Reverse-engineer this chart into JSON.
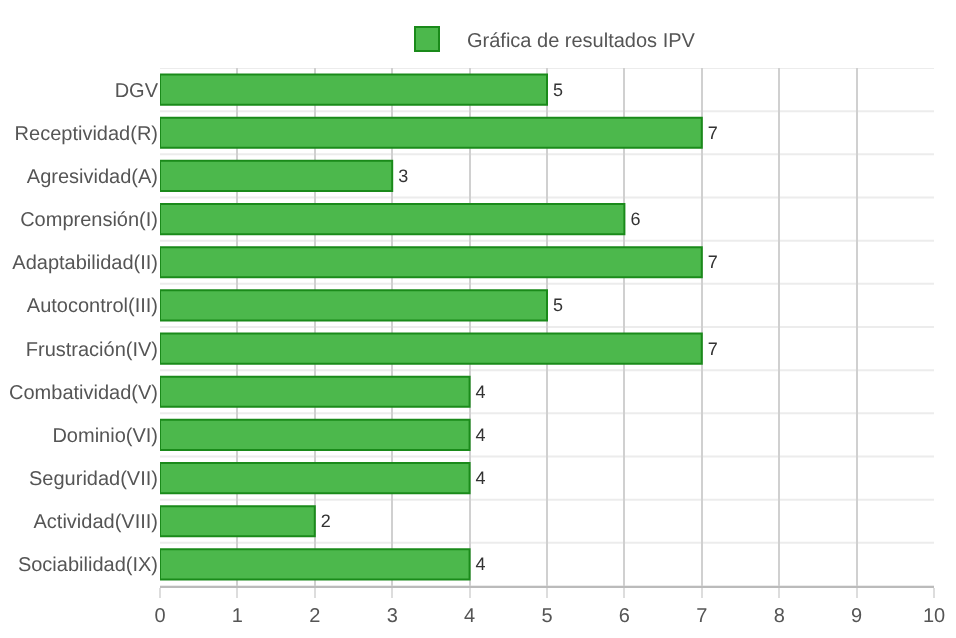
{
  "chart_data": {
    "type": "bar",
    "orientation": "horizontal",
    "categories": [
      "DGV",
      "Receptividad(R)",
      "Agresividad(A)",
      "Comprensión(I)",
      "Adaptabilidad(II)",
      "Autocontrol(III)",
      "Frustración(IV)",
      "Combatividad(V)",
      "Dominio(VI)",
      "Seguridad(VII)",
      "Actividad(VIII)",
      "Sociabilidad(IX)"
    ],
    "series": [
      {
        "name": "Gráfica de resultados IPV",
        "color": "#4cb84c",
        "values": [
          5,
          7,
          3,
          6,
          7,
          5,
          7,
          4,
          4,
          4,
          2,
          4
        ]
      }
    ],
    "xlim": [
      0,
      10
    ],
    "xticks": [
      0,
      1,
      2,
      3,
      4,
      5,
      6,
      7,
      8,
      9,
      10
    ],
    "grid": true,
    "legend": "top",
    "data_labels": true
  }
}
